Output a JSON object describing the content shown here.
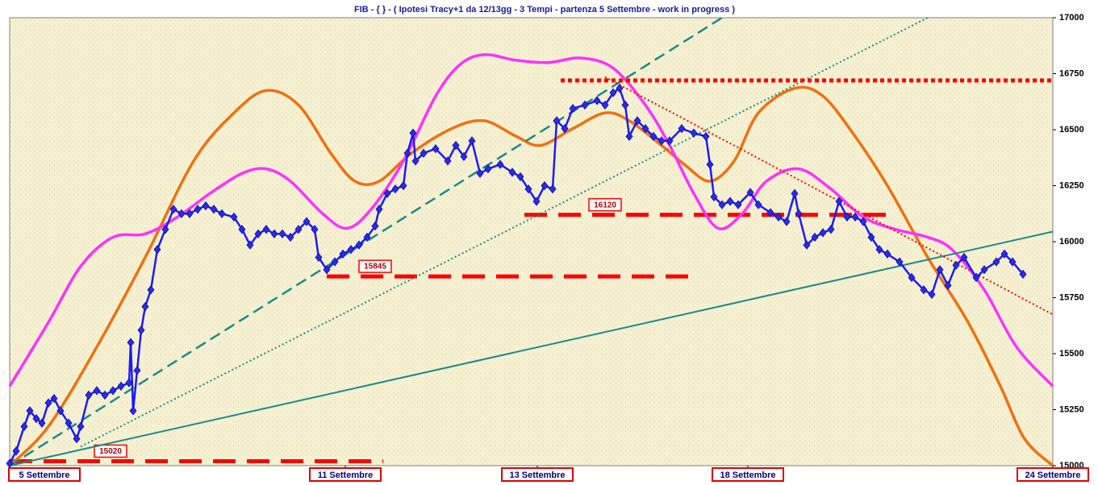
{
  "chart_data": {
    "type": "line",
    "title": "FIB  -  { } - ( Ipotesi Tracy+1 da 12/13gg - 3 Tempi - partenza 5 Settembre - work in progress )",
    "xlim": [
      0,
      1293
    ],
    "xticks": [
      {
        "value": 0,
        "label": "5 Settembre"
      },
      {
        "value": 416,
        "label": "11 Settembre"
      },
      {
        "value": 654,
        "label": "13 Settembre"
      },
      {
        "value": 915,
        "label": "18 Settembre"
      },
      {
        "value": 1293,
        "label": "24 Settembre"
      }
    ],
    "ylim": [
      15000,
      17000
    ],
    "yticks": [
      15000,
      15250,
      15500,
      15750,
      16000,
      16250,
      16500,
      16750,
      17000
    ],
    "series": [
      {
        "style": "smooth",
        "color": "#f07010",
        "x": [
          0,
          48,
          108,
          168,
          228,
          278,
          318,
          358,
          398,
          428,
          458,
          498,
          548,
          588,
          628,
          658,
          698,
          738,
          768,
          808,
          838,
          868,
          898,
          928,
          973,
          1008,
          1048,
          1088,
          1138,
          1188,
          1228,
          1258,
          1293
        ],
        "values": [
          15000,
          15175,
          15530,
          15930,
          16360,
          16575,
          16675,
          16610,
          16395,
          16270,
          16270,
          16395,
          16505,
          16540,
          16470,
          16430,
          16505,
          16575,
          16540,
          16430,
          16340,
          16270,
          16360,
          16575,
          16685,
          16650,
          16470,
          16250,
          15930,
          15640,
          15355,
          15120,
          15000
        ]
      },
      {
        "style": "smooth",
        "color": "#ff30ff",
        "x": [
          0,
          48,
          88,
          128,
          168,
          208,
          248,
          288,
          318,
          348,
          388,
          418,
          448,
          488,
          528,
          558,
          588,
          628,
          668,
          708,
          748,
          788,
          818,
          848,
          878,
          908,
          938,
          978,
          1018,
          1058,
          1098,
          1138,
          1168,
          1208,
          1248,
          1293
        ],
        "values": [
          15355,
          15640,
          15890,
          16020,
          16035,
          16110,
          16215,
          16305,
          16325,
          16270,
          16125,
          16060,
          16145,
          16360,
          16650,
          16790,
          16835,
          16810,
          16800,
          16820,
          16775,
          16610,
          16430,
          16215,
          16060,
          16125,
          16270,
          16325,
          16235,
          16110,
          16055,
          16020,
          15965,
          15785,
          15530,
          15355
        ]
      },
      {
        "style": "solid",
        "color": "#1a8a8a",
        "x": [
          0,
          1293
        ],
        "values": [
          15000,
          16045
        ]
      },
      {
        "style": "dashed",
        "color": "#1a8a8a",
        "x": [
          0,
          883
        ],
        "values": [
          15000,
          17000
        ]
      },
      {
        "style": "dotted",
        "color": "#1a8a8a",
        "x": [
          88,
          1138
        ],
        "values": [
          15085,
          17000
        ]
      },
      {
        "style": "dotted-bold",
        "color": "#ff0000",
        "x": [
          683,
          1293
        ],
        "values": [
          16720,
          16720
        ]
      },
      {
        "style": "dotted",
        "color": "#ff0000",
        "x": [
          738,
          1293
        ],
        "values": [
          16735,
          15675
        ]
      },
      {
        "style": "line-markers",
        "color": "#1a1aff",
        "x": [
          0,
          8,
          18,
          25,
          33,
          40,
          48,
          55,
          63,
          73,
          83,
          88,
          98,
          108,
          118,
          128,
          138,
          148,
          150,
          153,
          158,
          163,
          168,
          175,
          183,
          193,
          203,
          213,
          223,
          233,
          243,
          253,
          263,
          278,
          288,
          298,
          308,
          318,
          328,
          338,
          348,
          358,
          368,
          378,
          383,
          393,
          403,
          413,
          423,
          433,
          443,
          453,
          458,
          468,
          478,
          488,
          493,
          500,
          503,
          513,
          528,
          543,
          553,
          563,
          573,
          583,
          593,
          608,
          623,
          633,
          643,
          653,
          663,
          673,
          678,
          688,
          698,
          713,
          728,
          738,
          748,
          756,
          763,
          768,
          778,
          788,
          798,
          808,
          818,
          833,
          848,
          863,
          868,
          873,
          883,
          893,
          903,
          918,
          928,
          943,
          953,
          963,
          973,
          978,
          988,
          998,
          1008,
          1018,
          1028,
          1038,
          1048,
          1058,
          1068,
          1078,
          1088,
          1103,
          1118,
          1133,
          1143,
          1153,
          1163,
          1173,
          1183,
          1198,
          1208,
          1223,
          1233,
          1243,
          1256
        ],
        "values": [
          15010,
          15065,
          15175,
          15245,
          15210,
          15190,
          15280,
          15300,
          15245,
          15190,
          15120,
          15175,
          15315,
          15335,
          15315,
          15335,
          15355,
          15370,
          15550,
          15245,
          15425,
          15605,
          15710,
          15785,
          15965,
          16055,
          16145,
          16125,
          16125,
          16145,
          16160,
          16145,
          16125,
          16110,
          16055,
          15985,
          16035,
          16055,
          16035,
          16035,
          16020,
          16055,
          16090,
          16055,
          15930,
          15875,
          15910,
          15945,
          15965,
          15985,
          16020,
          16070,
          16145,
          16215,
          16235,
          16250,
          16395,
          16485,
          16360,
          16395,
          16415,
          16360,
          16430,
          16380,
          16450,
          16305,
          16325,
          16345,
          16310,
          16290,
          16235,
          16180,
          16250,
          16235,
          16540,
          16505,
          16595,
          16610,
          16630,
          16610,
          16665,
          16685,
          16610,
          16470,
          16540,
          16505,
          16470,
          16450,
          16450,
          16505,
          16485,
          16470,
          16345,
          16200,
          16165,
          16180,
          16165,
          16220,
          16165,
          16130,
          16110,
          16090,
          16215,
          16125,
          15985,
          16020,
          16040,
          16055,
          16180,
          16110,
          16110,
          16090,
          16020,
          15965,
          15945,
          15910,
          15840,
          15785,
          15765,
          15875,
          15805,
          15895,
          15930,
          15840,
          15875,
          15910,
          15945,
          15910,
          15855
        ]
      }
    ],
    "levels": [
      {
        "value": 15020,
        "x": [
          0,
          463
        ],
        "color": "#ff0000"
      },
      {
        "value": 15845,
        "x": [
          393,
          848
        ],
        "color": "#ff0000"
      },
      {
        "value": 16120,
        "x": [
          638,
          1088
        ],
        "color": "#ff0000"
      }
    ]
  }
}
